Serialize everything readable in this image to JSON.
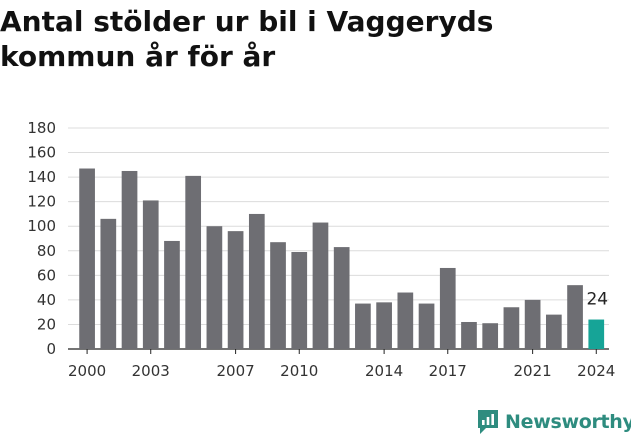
{
  "chart_data": {
    "type": "bar",
    "title": "Antal stölder ur bil i Vaggeryds kommun år för år",
    "xlabel": "",
    "ylabel": "",
    "x": [
      2000,
      2001,
      2002,
      2003,
      2004,
      2005,
      2006,
      2007,
      2008,
      2009,
      2010,
      2011,
      2012,
      2013,
      2014,
      2015,
      2016,
      2017,
      2018,
      2019,
      2020,
      2021,
      2022,
      2023,
      2024
    ],
    "values": [
      147,
      106,
      145,
      121,
      88,
      141,
      100,
      96,
      110,
      87,
      79,
      103,
      83,
      37,
      38,
      46,
      37,
      66,
      22,
      21,
      34,
      40,
      28,
      52,
      24
    ],
    "x_tick_labels": [
      "2000",
      "2003",
      "2007",
      "2010",
      "2014",
      "2017",
      "2021",
      "2024"
    ],
    "ylim": [
      0,
      180
    ],
    "y_ticks": [
      0,
      20,
      40,
      60,
      80,
      100,
      120,
      140,
      160,
      180
    ],
    "grid": true,
    "colors": {
      "bar": "#6e6e73",
      "highlight": "#16a497"
    },
    "highlight": {
      "x": 2024,
      "label": "24"
    }
  },
  "brand": {
    "name": "Newsworthy",
    "icon": "newsworthy-logo-icon"
  }
}
